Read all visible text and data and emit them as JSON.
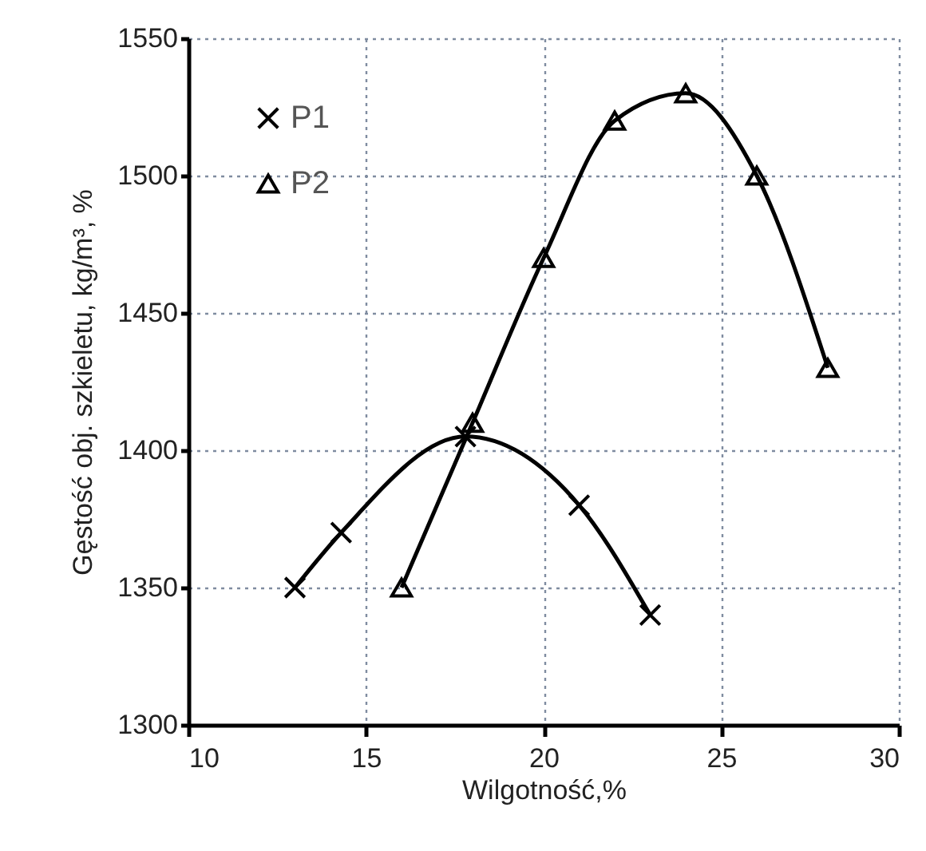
{
  "chart_data": {
    "type": "line",
    "xlabel": "Wilgotność,%",
    "ylabel": "Gęstość obj. szkieletu, kg/m³, %",
    "xlim": [
      10,
      30
    ],
    "xticks": [
      10,
      15,
      20,
      25,
      30
    ],
    "ylim": [
      1300,
      1550
    ],
    "yticks": [
      1300,
      1350,
      1400,
      1450,
      1500,
      1550
    ],
    "grid": true,
    "legend": "top left",
    "line_style": "solid",
    "series": [
      {
        "name": "P1",
        "color": "#000000",
        "marker": "cross",
        "x": [
          13,
          14.3,
          17.8,
          21,
          23
        ],
        "values": [
          1350,
          1370,
          1405,
          1380,
          1340
        ]
      },
      {
        "name": "P2",
        "color": "#000000",
        "marker": "triangle",
        "x": [
          16,
          18,
          20,
          22,
          24,
          26,
          28
        ],
        "values": [
          1350,
          1410,
          1470,
          1520,
          1530,
          1500,
          1430
        ]
      }
    ]
  }
}
